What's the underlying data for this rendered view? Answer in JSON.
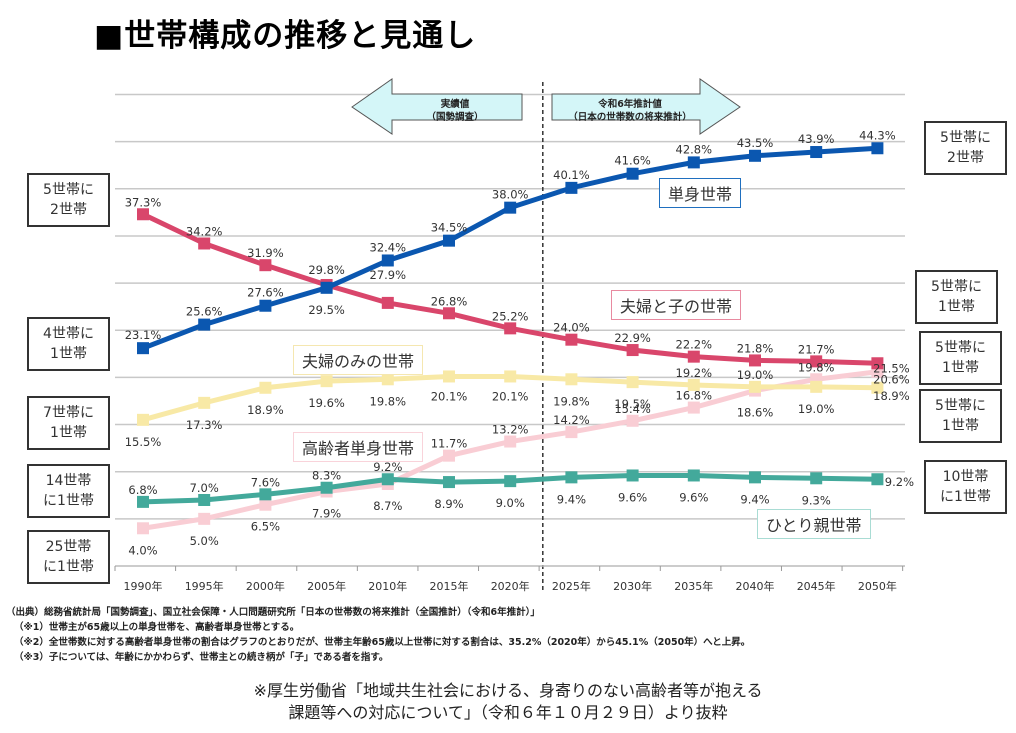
{
  "title": "■世帯構成の推移と見通し",
  "arrows": {
    "left": {
      "line1": "実績値",
      "line2": "（国勢調査）"
    },
    "right": {
      "line1": "令和6年推計値",
      "line2": "（日本の世帯数の将来推計）"
    }
  },
  "left_boxes": [
    {
      "line1": "5世帯に",
      "line2": "2世帯",
      "color": "#d9466b"
    },
    {
      "line1": "4世帯に",
      "line2": "1世帯",
      "color": "#1f6fbf"
    },
    {
      "line1": "7世帯に",
      "line2": "1世帯",
      "color": "#f5e08a"
    },
    {
      "line1": "14世帯",
      "line2": "に1世帯",
      "color": "#3aa597"
    },
    {
      "line1": "25世帯",
      "line2": "に1世帯",
      "color": "#f7c3cc"
    }
  ],
  "right_boxes": [
    {
      "line1": "5世帯に",
      "line2": "2世帯",
      "color": "#1f6fbf"
    },
    {
      "line1": "5世帯に",
      "line2": "1世帯",
      "color": "#d9466b"
    },
    {
      "line1": "5世帯に",
      "line2": "1世帯",
      "color": "#f7c3cc"
    },
    {
      "line1": "5世帯に",
      "line2": "1世帯",
      "color": "#f5e08a"
    },
    {
      "line1": "10世帯",
      "line2": "に1世帯",
      "color": "#3aa597"
    }
  ],
  "series_labels": {
    "single": "単身世帯",
    "couple_child": "夫婦と子の世帯",
    "couple_only": "夫婦のみの世帯",
    "elderly_single": "高齢者単身世帯",
    "single_parent": "ひとり親世帯"
  },
  "notes": [
    "（出典）総務省統計局「国勢調査」、国立社会保障・人口問題研究所「日本の世帯数の将来推計（全国推計）（令和6年推計）」",
    "（※1）世帯主が65歳以上の単身世帯を、高齢者単身世帯とする。",
    "（※2）全世帯数に対する高齢者単身世帯の割合はグラフのとおりだが、世帯主年齢65歳以上世帯に対する割合は、35.2%（2020年）から45.1%（2050年）へと上昇。",
    "（※3）子については、年齢にかかわらず、世帯主との続き柄が「子」である者を指す。"
  ],
  "source": {
    "line1": "※厚生労働省「地域共生社会における、身寄りのない高齢者等が抱える",
    "line2": "課題等への対応について」（令和６年１０月２９日）より抜粋"
  },
  "chart_data": {
    "type": "line",
    "title": "世帯構成の推移と見通し",
    "xlabel": "",
    "ylabel": "",
    "categories": [
      "1990年",
      "1995年",
      "2000年",
      "2005年",
      "2010年",
      "2015年",
      "2020年",
      "2025年",
      "2030年",
      "2035年",
      "2040年",
      "2045年",
      "2050年"
    ],
    "ylim": [
      0,
      50
    ],
    "grid": true,
    "divider_after": "2020年",
    "series": [
      {
        "key": "single",
        "name": "単身世帯",
        "color": "#0b57b0",
        "values": [
          23.1,
          25.6,
          27.6,
          29.5,
          32.4,
          34.5,
          38.0,
          40.1,
          41.6,
          42.8,
          43.5,
          43.9,
          44.3
        ]
      },
      {
        "key": "couple_child",
        "name": "夫婦と子の世帯",
        "color": "#d9466b",
        "values": [
          37.3,
          34.2,
          31.9,
          29.8,
          27.9,
          26.8,
          25.2,
          24.0,
          22.9,
          22.2,
          21.8,
          21.7,
          21.5
        ]
      },
      {
        "key": "couple_only",
        "name": "夫婦のみの世帯",
        "color": "#f8e9a6",
        "values": [
          15.5,
          17.3,
          18.9,
          19.6,
          19.8,
          20.1,
          20.1,
          19.8,
          19.5,
          19.2,
          19.0,
          19.0,
          18.9
        ]
      },
      {
        "key": "elderly_single",
        "name": "高齢者単身世帯",
        "color": "#f9cdd4",
        "values": [
          4.0,
          5.0,
          6.5,
          7.9,
          8.7,
          11.7,
          13.2,
          14.2,
          15.4,
          16.8,
          18.6,
          19.8,
          20.6
        ]
      },
      {
        "key": "single_parent",
        "name": "ひとり親世帯",
        "color": "#43a99b",
        "values": [
          6.8,
          7.0,
          7.6,
          8.3,
          9.2,
          8.9,
          9.0,
          9.4,
          9.6,
          9.6,
          9.4,
          9.3,
          9.2
        ]
      }
    ]
  }
}
